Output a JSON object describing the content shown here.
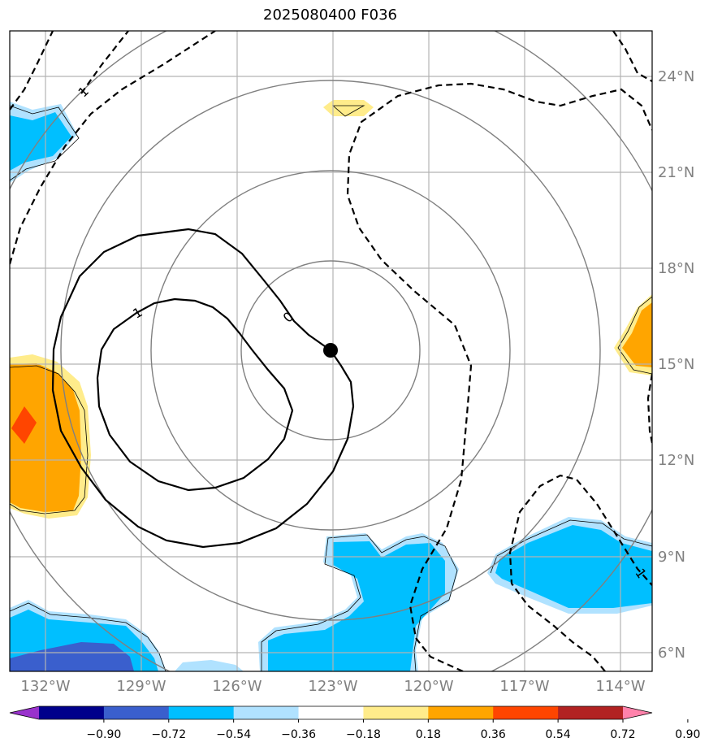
{
  "title": "2025080400 F036",
  "map": {
    "lon_ticks": [
      "132°W",
      "129°W",
      "126°W",
      "123°W",
      "120°W",
      "117°W",
      "114°W"
    ],
    "lat_ticks": [
      "24°N",
      "21°N",
      "18°N",
      "15°N",
      "12°N",
      "9°N",
      "6°N"
    ],
    "center_marker": {
      "lon": -123.0,
      "lat": 15.4
    },
    "range_rings_deg": [
      2.7,
      5.5,
      8.3,
      11.0
    ],
    "contour_labels": [
      "0",
      "1",
      "1",
      "1"
    ]
  },
  "colorbar": {
    "tick_labels": [
      "−0.90",
      "−0.72",
      "−0.54",
      "−0.36",
      "−0.18",
      "0.18",
      "0.36",
      "0.54",
      "0.72",
      "0.90"
    ],
    "colors": [
      "#9932cc",
      "#00008b",
      "#3a5fcd",
      "#00bfff",
      "#b0e2ff",
      "#ffffff",
      "#ffec8b",
      "#ffa500",
      "#ff4500",
      "#b22222",
      "#ff82ab"
    ],
    "extend": "both"
  },
  "colors": {
    "grid": "#b3b3b3",
    "rings": "#808080",
    "positive_anomaly": "#ffa500",
    "negative_anomaly": "#00bfff"
  }
}
